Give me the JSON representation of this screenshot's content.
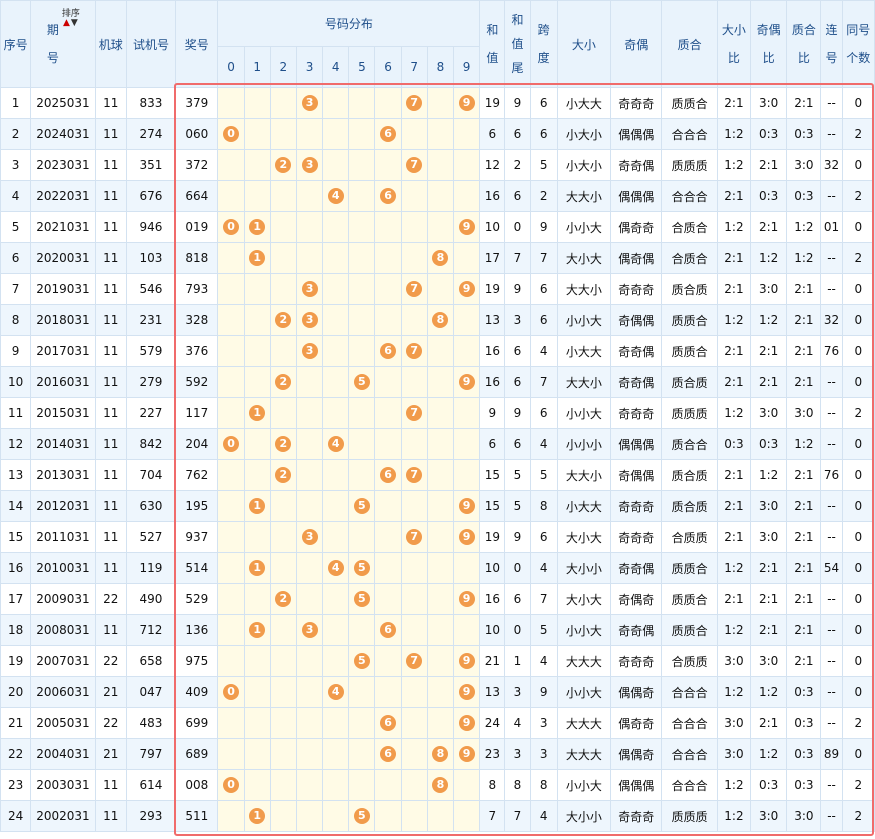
{
  "headers": {
    "seq": "序号",
    "period": "期号",
    "sort_label": "排序",
    "machine": "机球",
    "test_no": "试机号",
    "prize": "奖号",
    "distribution": "号码分布",
    "digits": [
      "0",
      "1",
      "2",
      "3",
      "4",
      "5",
      "6",
      "7",
      "8",
      "9"
    ],
    "sum": "和值",
    "sum_tail": "和值尾",
    "span": "跨度",
    "size": "大小",
    "odd_even": "奇偶",
    "prime_comp": "质合",
    "size_ratio": "大小比",
    "odd_even_ratio": "奇偶比",
    "prime_ratio": "质合比",
    "consecutive": "连号",
    "same_count": "同号个数"
  },
  "colors": {
    "ball": "#f19b4b",
    "highlight_border": "#f06b6b",
    "header_bg": "#e9f3fc",
    "dist_bg": "#fffbe6",
    "alt_row_bg": "#eef6fd"
  },
  "rows": [
    {
      "seq": "1",
      "period": "2025031",
      "machine": "11",
      "test": "833",
      "prize": "379",
      "sum": "19",
      "tail": "9",
      "span": "6",
      "size": "小大大",
      "oe": "奇奇奇",
      "pc": "质质合",
      "sr": "2:1",
      "oer": "3:0",
      "pr": "2:1",
      "cons": "--",
      "same": "0"
    },
    {
      "seq": "2",
      "period": "2024031",
      "machine": "11",
      "test": "274",
      "prize": "060",
      "sum": "6",
      "tail": "6",
      "span": "6",
      "size": "小大小",
      "oe": "偶偶偶",
      "pc": "合合合",
      "sr": "1:2",
      "oer": "0:3",
      "pr": "0:3",
      "cons": "--",
      "same": "2"
    },
    {
      "seq": "3",
      "period": "2023031",
      "machine": "11",
      "test": "351",
      "prize": "372",
      "sum": "12",
      "tail": "2",
      "span": "5",
      "size": "小大小",
      "oe": "奇奇偶",
      "pc": "质质质",
      "sr": "1:2",
      "oer": "2:1",
      "pr": "3:0",
      "cons": "32",
      "same": "0"
    },
    {
      "seq": "4",
      "period": "2022031",
      "machine": "11",
      "test": "676",
      "prize": "664",
      "sum": "16",
      "tail": "6",
      "span": "2",
      "size": "大大小",
      "oe": "偶偶偶",
      "pc": "合合合",
      "sr": "2:1",
      "oer": "0:3",
      "pr": "0:3",
      "cons": "--",
      "same": "2"
    },
    {
      "seq": "5",
      "period": "2021031",
      "machine": "11",
      "test": "946",
      "prize": "019",
      "sum": "10",
      "tail": "0",
      "span": "9",
      "size": "小小大",
      "oe": "偶奇奇",
      "pc": "合质合",
      "sr": "1:2",
      "oer": "2:1",
      "pr": "1:2",
      "cons": "01",
      "same": "0"
    },
    {
      "seq": "6",
      "period": "2020031",
      "machine": "11",
      "test": "103",
      "prize": "818",
      "sum": "17",
      "tail": "7",
      "span": "7",
      "size": "大小大",
      "oe": "偶奇偶",
      "pc": "合质合",
      "sr": "2:1",
      "oer": "1:2",
      "pr": "1:2",
      "cons": "--",
      "same": "2"
    },
    {
      "seq": "7",
      "period": "2019031",
      "machine": "11",
      "test": "546",
      "prize": "793",
      "sum": "19",
      "tail": "9",
      "span": "6",
      "size": "大大小",
      "oe": "奇奇奇",
      "pc": "质合质",
      "sr": "2:1",
      "oer": "3:0",
      "pr": "2:1",
      "cons": "--",
      "same": "0"
    },
    {
      "seq": "8",
      "period": "2018031",
      "machine": "11",
      "test": "231",
      "prize": "328",
      "sum": "13",
      "tail": "3",
      "span": "6",
      "size": "小小大",
      "oe": "奇偶偶",
      "pc": "质质合",
      "sr": "1:2",
      "oer": "1:2",
      "pr": "2:1",
      "cons": "32",
      "same": "0"
    },
    {
      "seq": "9",
      "period": "2017031",
      "machine": "11",
      "test": "579",
      "prize": "376",
      "sum": "16",
      "tail": "6",
      "span": "4",
      "size": "小大大",
      "oe": "奇奇偶",
      "pc": "质质合",
      "sr": "2:1",
      "oer": "2:1",
      "pr": "2:1",
      "cons": "76",
      "same": "0"
    },
    {
      "seq": "10",
      "period": "2016031",
      "machine": "11",
      "test": "279",
      "prize": "592",
      "sum": "16",
      "tail": "6",
      "span": "7",
      "size": "大大小",
      "oe": "奇奇偶",
      "pc": "质合质",
      "sr": "2:1",
      "oer": "2:1",
      "pr": "2:1",
      "cons": "--",
      "same": "0"
    },
    {
      "seq": "11",
      "period": "2015031",
      "machine": "11",
      "test": "227",
      "prize": "117",
      "sum": "9",
      "tail": "9",
      "span": "6",
      "size": "小小大",
      "oe": "奇奇奇",
      "pc": "质质质",
      "sr": "1:2",
      "oer": "3:0",
      "pr": "3:0",
      "cons": "--",
      "same": "2"
    },
    {
      "seq": "12",
      "period": "2014031",
      "machine": "11",
      "test": "842",
      "prize": "204",
      "sum": "6",
      "tail": "6",
      "span": "4",
      "size": "小小小",
      "oe": "偶偶偶",
      "pc": "质合合",
      "sr": "0:3",
      "oer": "0:3",
      "pr": "1:2",
      "cons": "--",
      "same": "0"
    },
    {
      "seq": "13",
      "period": "2013031",
      "machine": "11",
      "test": "704",
      "prize": "762",
      "sum": "15",
      "tail": "5",
      "span": "5",
      "size": "大大小",
      "oe": "奇偶偶",
      "pc": "质合质",
      "sr": "2:1",
      "oer": "1:2",
      "pr": "2:1",
      "cons": "76",
      "same": "0"
    },
    {
      "seq": "14",
      "period": "2012031",
      "machine": "11",
      "test": "630",
      "prize": "195",
      "sum": "15",
      "tail": "5",
      "span": "8",
      "size": "小大大",
      "oe": "奇奇奇",
      "pc": "质合质",
      "sr": "2:1",
      "oer": "3:0",
      "pr": "2:1",
      "cons": "--",
      "same": "0"
    },
    {
      "seq": "15",
      "period": "2011031",
      "machine": "11",
      "test": "527",
      "prize": "937",
      "sum": "19",
      "tail": "9",
      "span": "6",
      "size": "大小大",
      "oe": "奇奇奇",
      "pc": "合质质",
      "sr": "2:1",
      "oer": "3:0",
      "pr": "2:1",
      "cons": "--",
      "same": "0"
    },
    {
      "seq": "16",
      "period": "2010031",
      "machine": "11",
      "test": "119",
      "prize": "514",
      "sum": "10",
      "tail": "0",
      "span": "4",
      "size": "大小小",
      "oe": "奇奇偶",
      "pc": "质质合",
      "sr": "1:2",
      "oer": "2:1",
      "pr": "2:1",
      "cons": "54",
      "same": "0"
    },
    {
      "seq": "17",
      "period": "2009031",
      "machine": "22",
      "test": "490",
      "prize": "529",
      "sum": "16",
      "tail": "6",
      "span": "7",
      "size": "大小大",
      "oe": "奇偶奇",
      "pc": "质质合",
      "sr": "2:1",
      "oer": "2:1",
      "pr": "2:1",
      "cons": "--",
      "same": "0"
    },
    {
      "seq": "18",
      "period": "2008031",
      "machine": "11",
      "test": "712",
      "prize": "136",
      "sum": "10",
      "tail": "0",
      "span": "5",
      "size": "小小大",
      "oe": "奇奇偶",
      "pc": "质质合",
      "sr": "1:2",
      "oer": "2:1",
      "pr": "2:1",
      "cons": "--",
      "same": "0"
    },
    {
      "seq": "19",
      "period": "2007031",
      "machine": "22",
      "test": "658",
      "prize": "975",
      "sum": "21",
      "tail": "1",
      "span": "4",
      "size": "大大大",
      "oe": "奇奇奇",
      "pc": "合质质",
      "sr": "3:0",
      "oer": "3:0",
      "pr": "2:1",
      "cons": "--",
      "same": "0"
    },
    {
      "seq": "20",
      "period": "2006031",
      "machine": "21",
      "test": "047",
      "prize": "409",
      "sum": "13",
      "tail": "3",
      "span": "9",
      "size": "小小大",
      "oe": "偶偶奇",
      "pc": "合合合",
      "sr": "1:2",
      "oer": "1:2",
      "pr": "0:3",
      "cons": "--",
      "same": "0"
    },
    {
      "seq": "21",
      "period": "2005031",
      "machine": "22",
      "test": "483",
      "prize": "699",
      "sum": "24",
      "tail": "4",
      "span": "3",
      "size": "大大大",
      "oe": "偶奇奇",
      "pc": "合合合",
      "sr": "3:0",
      "oer": "2:1",
      "pr": "0:3",
      "cons": "--",
      "same": "2"
    },
    {
      "seq": "22",
      "period": "2004031",
      "machine": "21",
      "test": "797",
      "prize": "689",
      "sum": "23",
      "tail": "3",
      "span": "3",
      "size": "大大大",
      "oe": "偶偶奇",
      "pc": "合合合",
      "sr": "3:0",
      "oer": "1:2",
      "pr": "0:3",
      "cons": "89",
      "same": "0"
    },
    {
      "seq": "23",
      "period": "2003031",
      "machine": "11",
      "test": "614",
      "prize": "008",
      "sum": "8",
      "tail": "8",
      "span": "8",
      "size": "小小大",
      "oe": "偶偶偶",
      "pc": "合合合",
      "sr": "1:2",
      "oer": "0:3",
      "pr": "0:3",
      "cons": "--",
      "same": "2"
    },
    {
      "seq": "24",
      "period": "2002031",
      "machine": "11",
      "test": "293",
      "prize": "511",
      "sum": "7",
      "tail": "7",
      "span": "4",
      "size": "大小小",
      "oe": "奇奇奇",
      "pc": "质质质",
      "sr": "1:2",
      "oer": "3:0",
      "pr": "3:0",
      "cons": "--",
      "same": "2"
    }
  ]
}
